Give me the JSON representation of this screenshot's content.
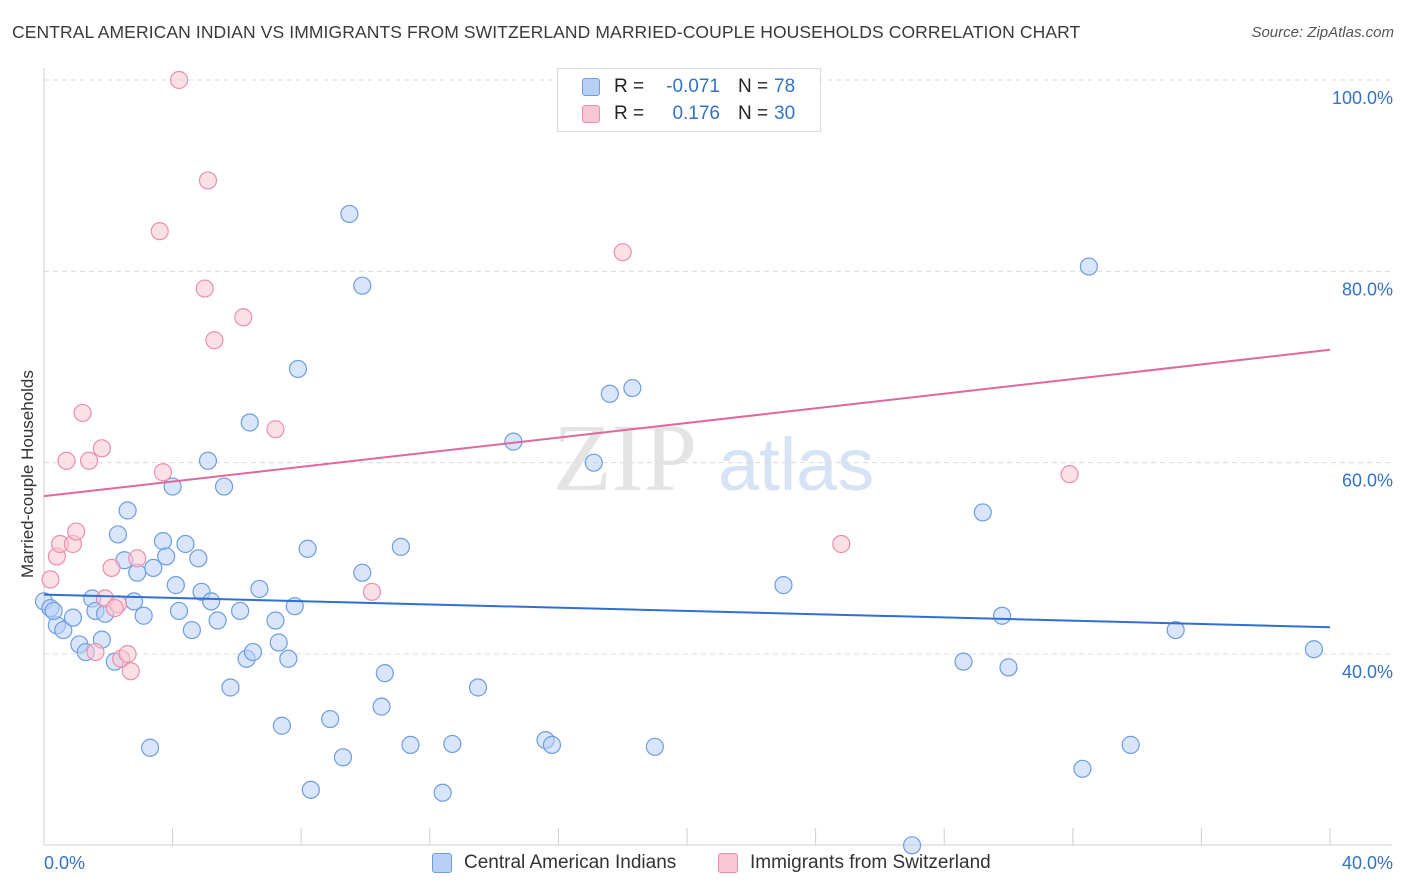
{
  "title": "CENTRAL AMERICAN INDIAN VS IMMIGRANTS FROM SWITZERLAND MARRIED-COUPLE HOUSEHOLDS CORRELATION CHART",
  "source": "Source: ZipAtlas.com",
  "watermark": {
    "zip": "ZIP",
    "atlas": "atlas"
  },
  "legend": {
    "rows": [
      {
        "r_label": "R =",
        "r_value": "-0.071",
        "n_label": "N =",
        "n_value": "78"
      },
      {
        "r_label": "R =",
        "r_value": "0.176",
        "n_label": "N =",
        "n_value": "30"
      }
    ]
  },
  "colors": {
    "blue_fill": "#b8d0f5",
    "blue_stroke": "#6f9de0",
    "blue_line": "#2f6fcf",
    "pink_fill": "#f9c6d4",
    "pink_stroke": "#eb8fab",
    "pink_line": "#e0689a",
    "axis_text": "#3373c4",
    "grid": "#dcdcdc"
  },
  "chart_data": {
    "type": "scatter",
    "title": "CENTRAL AMERICAN INDIAN VS IMMIGRANTS FROM SWITZERLAND MARRIED-COUPLE HOUSEHOLDS CORRELATION CHART",
    "xlabel": "",
    "ylabel": "Married-couple Households",
    "xlim": [
      0,
      40
    ],
    "ylim": [
      20,
      102
    ],
    "x_tick_labels": [
      "0.0%",
      "40.0%"
    ],
    "y_ticks": [
      40,
      60,
      80,
      100
    ],
    "y_tick_labels": [
      "40.0%",
      "60.0%",
      "80.0%",
      "100.0%"
    ],
    "grid": true,
    "legend_position": "top-center",
    "series": [
      {
        "name": "Central American Indians",
        "color": "#b8d0f5",
        "trend": {
          "x": [
            0,
            40
          ],
          "y": [
            46.2,
            42.8
          ]
        },
        "points": [
          [
            0.0,
            45.5
          ],
          [
            0.2,
            44.8
          ],
          [
            0.4,
            43.0
          ],
          [
            0.6,
            42.5
          ],
          [
            0.9,
            43.8
          ],
          [
            1.1,
            41.0
          ],
          [
            1.3,
            40.2
          ],
          [
            1.5,
            45.8
          ],
          [
            1.6,
            44.5
          ],
          [
            1.8,
            41.5
          ],
          [
            1.9,
            44.2
          ],
          [
            2.2,
            39.2
          ],
          [
            2.3,
            52.5
          ],
          [
            2.5,
            49.8
          ],
          [
            2.6,
            55.0
          ],
          [
            2.8,
            45.5
          ],
          [
            2.9,
            48.5
          ],
          [
            3.1,
            44.0
          ],
          [
            3.4,
            49.0
          ],
          [
            3.3,
            30.2
          ],
          [
            3.7,
            51.8
          ],
          [
            3.8,
            50.2
          ],
          [
            4.0,
            57.5
          ],
          [
            4.1,
            47.2
          ],
          [
            4.2,
            44.5
          ],
          [
            4.4,
            51.5
          ],
          [
            4.6,
            42.5
          ],
          [
            4.8,
            50.0
          ],
          [
            4.9,
            46.5
          ],
          [
            5.1,
            60.2
          ],
          [
            5.2,
            45.5
          ],
          [
            5.4,
            43.5
          ],
          [
            5.6,
            57.5
          ],
          [
            5.8,
            36.5
          ],
          [
            6.1,
            44.5
          ],
          [
            6.3,
            39.5
          ],
          [
            6.5,
            40.2
          ],
          [
            6.7,
            46.8
          ],
          [
            6.4,
            64.2
          ],
          [
            7.2,
            43.5
          ],
          [
            7.3,
            41.2
          ],
          [
            7.4,
            32.5
          ],
          [
            7.6,
            39.5
          ],
          [
            7.8,
            45.0
          ],
          [
            7.9,
            69.8
          ],
          [
            8.2,
            51.0
          ],
          [
            8.3,
            25.8
          ],
          [
            8.9,
            33.2
          ],
          [
            9.3,
            29.2
          ],
          [
            9.5,
            86.0
          ],
          [
            9.9,
            78.5
          ],
          [
            9.9,
            48.5
          ],
          [
            10.5,
            34.5
          ],
          [
            10.6,
            38.0
          ],
          [
            11.1,
            51.2
          ],
          [
            11.4,
            30.5
          ],
          [
            12.4,
            25.5
          ],
          [
            12.7,
            30.6
          ],
          [
            13.5,
            36.5
          ],
          [
            14.6,
            62.2
          ],
          [
            15.6,
            31.0
          ],
          [
            15.8,
            30.5
          ],
          [
            17.1,
            60.0
          ],
          [
            17.6,
            67.2
          ],
          [
            18.3,
            67.8
          ],
          [
            19.0,
            30.3
          ],
          [
            23.0,
            47.2
          ],
          [
            27.0,
            20.0
          ],
          [
            28.6,
            39.2
          ],
          [
            29.2,
            54.8
          ],
          [
            29.8,
            44.0
          ],
          [
            30.0,
            38.6
          ],
          [
            32.3,
            28.0
          ],
          [
            32.5,
            80.5
          ],
          [
            33.8,
            30.5
          ],
          [
            35.2,
            42.5
          ],
          [
            39.5,
            40.5
          ],
          [
            0.3,
            44.5
          ]
        ]
      },
      {
        "name": "Immigrants from Switzerland",
        "color": "#f9c6d4",
        "trend": {
          "x": [
            0,
            40
          ],
          "y": [
            56.5,
            71.8
          ]
        },
        "points": [
          [
            0.2,
            47.8
          ],
          [
            0.4,
            50.2
          ],
          [
            0.5,
            51.5
          ],
          [
            0.7,
            60.2
          ],
          [
            0.9,
            51.5
          ],
          [
            1.0,
            52.8
          ],
          [
            1.2,
            65.2
          ],
          [
            1.4,
            60.2
          ],
          [
            1.6,
            40.2
          ],
          [
            1.8,
            61.5
          ],
          [
            1.9,
            45.8
          ],
          [
            2.1,
            49.0
          ],
          [
            2.3,
            45.2
          ],
          [
            2.4,
            39.5
          ],
          [
            2.6,
            40.0
          ],
          [
            2.7,
            38.2
          ],
          [
            2.9,
            50.0
          ],
          [
            3.6,
            84.2
          ],
          [
            3.7,
            59.0
          ],
          [
            4.2,
            100.0
          ],
          [
            5.0,
            78.2
          ],
          [
            5.1,
            89.5
          ],
          [
            5.3,
            72.8
          ],
          [
            6.2,
            75.2
          ],
          [
            7.2,
            63.5
          ],
          [
            10.2,
            46.5
          ],
          [
            18.0,
            82.0
          ],
          [
            24.8,
            51.5
          ],
          [
            31.9,
            58.8
          ],
          [
            2.2,
            44.8
          ]
        ]
      }
    ]
  }
}
